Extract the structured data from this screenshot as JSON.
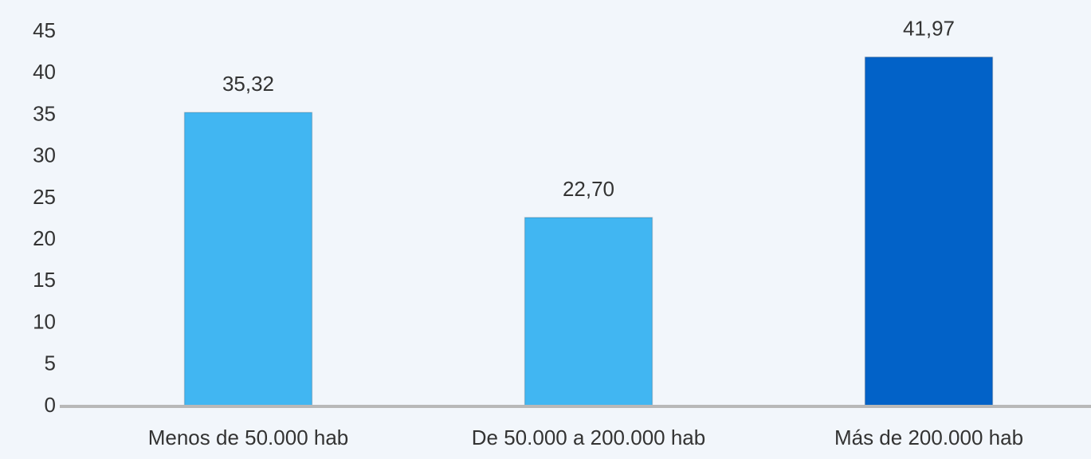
{
  "chart_data": {
    "type": "bar",
    "categories": [
      "Menos de 50.000 hab",
      "De 50.000 a 200.000 hab",
      "Más de 200.000 hab"
    ],
    "values": [
      35.32,
      22.7,
      41.97
    ],
    "value_labels": [
      "35,32",
      "22,70",
      "41,97"
    ],
    "colors": [
      "#41b6f2",
      "#41b6f2",
      "#0262c8"
    ],
    "ylim": [
      0,
      45
    ],
    "yticks": [
      0,
      5,
      10,
      15,
      20,
      25,
      30,
      35,
      40,
      45
    ],
    "grid": false
  }
}
